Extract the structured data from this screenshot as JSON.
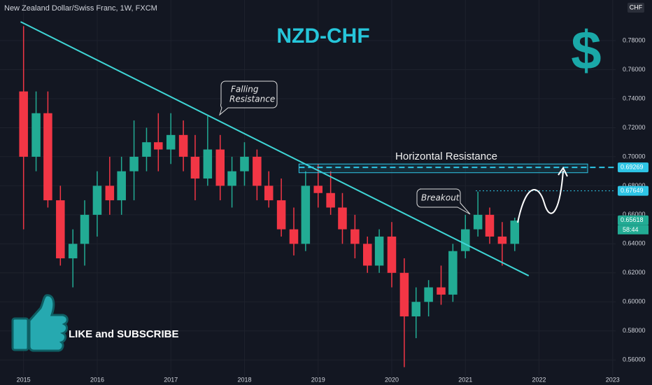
{
  "chart_data": {
    "type": "candlestick",
    "header": "New Zealand Dollar/Swiss Franc, 1W, FXCM",
    "title": "NZD-CHF",
    "currency": "CHF",
    "currency_symbol": "$",
    "annotations": {
      "falling": [
        "Falling",
        "Resistance"
      ],
      "horizontal": "Horizontal Resistance",
      "breakout": "Breakout",
      "cta": "LIKE and SUBSCRIBE"
    },
    "up_color": "#22ab94",
    "down_color": "#f23645",
    "x": [
      2015.0,
      2015.17,
      2015.33,
      2015.5,
      2015.67,
      2015.83,
      2016.0,
      2016.17,
      2016.33,
      2016.5,
      2016.67,
      2016.83,
      2017.0,
      2017.17,
      2017.33,
      2017.5,
      2017.67,
      2017.83,
      2018.0,
      2018.17,
      2018.33,
      2018.5,
      2018.67,
      2018.83,
      2019.0,
      2019.17,
      2019.33,
      2019.5,
      2019.67,
      2019.83,
      2020.0,
      2020.17,
      2020.33,
      2020.5,
      2020.67,
      2020.83,
      2021.0,
      2021.17,
      2021.33,
      2021.5,
      2021.67
    ],
    "open": [
      0.745,
      0.7,
      0.73,
      0.67,
      0.63,
      0.64,
      0.66,
      0.68,
      0.67,
      0.69,
      0.7,
      0.71,
      0.705,
      0.715,
      0.7,
      0.685,
      0.705,
      0.68,
      0.69,
      0.7,
      0.68,
      0.67,
      0.65,
      0.64,
      0.68,
      0.675,
      0.665,
      0.65,
      0.64,
      0.625,
      0.645,
      0.62,
      0.59,
      0.6,
      0.61,
      0.605,
      0.635,
      0.65,
      0.66,
      0.645,
      0.64
    ],
    "high": [
      0.79,
      0.745,
      0.745,
      0.68,
      0.65,
      0.67,
      0.69,
      0.7,
      0.7,
      0.725,
      0.72,
      0.73,
      0.73,
      0.725,
      0.715,
      0.728,
      0.715,
      0.7,
      0.71,
      0.705,
      0.69,
      0.685,
      0.665,
      0.69,
      0.695,
      0.69,
      0.675,
      0.66,
      0.645,
      0.65,
      0.655,
      0.63,
      0.61,
      0.615,
      0.625,
      0.64,
      0.66,
      0.676,
      0.665,
      0.655,
      0.658
    ],
    "low": [
      0.65,
      0.69,
      0.665,
      0.625,
      0.61,
      0.625,
      0.645,
      0.66,
      0.66,
      0.67,
      0.69,
      0.69,
      0.695,
      0.69,
      0.67,
      0.68,
      0.67,
      0.665,
      0.68,
      0.67,
      0.665,
      0.645,
      0.632,
      0.635,
      0.665,
      0.66,
      0.64,
      0.63,
      0.62,
      0.62,
      0.61,
      0.555,
      0.575,
      0.59,
      0.598,
      0.6,
      0.63,
      0.645,
      0.64,
      0.625,
      0.635
    ],
    "close": [
      0.7,
      0.73,
      0.67,
      0.63,
      0.64,
      0.66,
      0.68,
      0.67,
      0.69,
      0.7,
      0.71,
      0.705,
      0.715,
      0.7,
      0.685,
      0.705,
      0.68,
      0.69,
      0.7,
      0.68,
      0.67,
      0.65,
      0.64,
      0.68,
      0.675,
      0.665,
      0.65,
      0.64,
      0.625,
      0.645,
      0.62,
      0.59,
      0.6,
      0.61,
      0.605,
      0.635,
      0.65,
      0.66,
      0.645,
      0.64,
      0.656
    ],
    "trendline": {
      "x": [
        2014.96,
        2021.86
      ],
      "y": [
        0.793,
        0.618
      ],
      "color": "#3fd6d6"
    },
    "resistance_zone": {
      "x": [
        2018.74,
        2022.66
      ],
      "y": [
        0.689,
        0.695
      ]
    },
    "price_labels": [
      {
        "value": 0.69269,
        "color": "#2ec5e6",
        "x_from": 2018.74
      },
      {
        "value": 0.67649,
        "color": "#2ec5e6",
        "x_from": 2021.14
      },
      {
        "value": 0.65618,
        "color": "#22ab94",
        "x_from": null
      }
    ],
    "countdown": "58:44",
    "xlim": [
      2014.68,
      2023.04
    ],
    "ylim": [
      0.549,
      0.808
    ],
    "xticks": [
      2015,
      2016,
      2017,
      2018,
      2019,
      2020,
      2021,
      2022,
      2023
    ],
    "yticks": [
      {
        "value": 0.56,
        "label": "0.56000"
      },
      {
        "value": 0.58,
        "label": "0.58000"
      },
      {
        "value": 0.6,
        "label": "0.60000"
      },
      {
        "value": 0.62,
        "label": "0.62000"
      },
      {
        "value": 0.64,
        "label": "0.64000"
      },
      {
        "value": 0.66,
        "label": "0.66000"
      },
      {
        "value": 0.68,
        "label": "0.68000"
      },
      {
        "value": 0.7,
        "label": "0.70000"
      },
      {
        "value": 0.72,
        "label": "0.72000"
      },
      {
        "value": 0.74,
        "label": "0.74000"
      },
      {
        "value": 0.76,
        "label": "0.76000"
      },
      {
        "value": 0.78,
        "label": "0.78000"
      }
    ],
    "grid": true
  }
}
